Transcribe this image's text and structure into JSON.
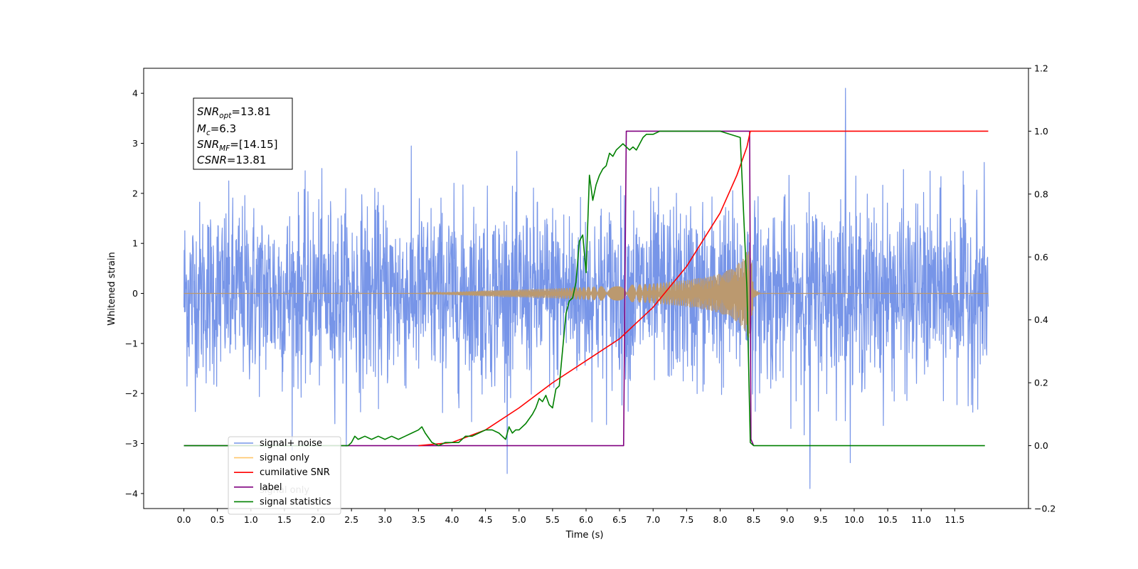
{
  "chart_data": {
    "type": "line",
    "xlabel": "Time (s)",
    "ylabel": "Whitened strain",
    "x_range": [
      -0.6,
      12.6
    ],
    "y_left_range": [
      -4.3,
      4.5
    ],
    "y_right_range": [
      -0.2,
      1.2
    ],
    "x_ticks": [
      "0.0",
      "0.5",
      "1.0",
      "1.5",
      "2.0",
      "2.5",
      "3.0",
      "3.5",
      "4.0",
      "4.5",
      "5.0",
      "5.5",
      "6.0",
      "6.5",
      "7.0",
      "7.5",
      "8.0",
      "8.5",
      "9.0",
      "9.5",
      "10.0",
      "10.5",
      "11.0",
      "11.5"
    ],
    "y_left_ticks": [
      "−4",
      "−3",
      "−2",
      "−1",
      "0",
      "1",
      "2",
      "3",
      "4"
    ],
    "y_right_ticks": [
      "−0.2",
      "0.0",
      "0.2",
      "0.4",
      "0.6",
      "0.8",
      "1.0",
      "1.2"
    ],
    "annotation": [
      {
        "main": "SNR",
        "sub": "opt",
        "value": "=13.81"
      },
      {
        "main": "M",
        "sub": "c",
        "value": "=6.3"
      },
      {
        "main": "SNR",
        "sub": "MF",
        "value": "=[14.15]"
      },
      {
        "main": "CSNR",
        "sub": "",
        "value": "=13.81"
      }
    ],
    "legend": {
      "placement": "lower-left",
      "entries": [
        {
          "label": "signal+ noise",
          "color": "#7795e8"
        },
        {
          "label": "signal only",
          "color": "#ffc66a"
        },
        {
          "label": "cumilative SNR",
          "color": "#ff0000"
        },
        {
          "label": "label",
          "color": "#800080"
        },
        {
          "label": "signal statistics",
          "color": "#008000"
        }
      ]
    },
    "legend_ghost_text": "signal only",
    "series": [
      {
        "name": "signal+ noise",
        "axis": "left",
        "color": "#7795e8",
        "noise_std": 0.9,
        "max": 4.1,
        "min": -3.9,
        "x_start": 0.0,
        "x_end": 12.0
      },
      {
        "name": "signal only",
        "axis": "left",
        "color": "#bb996f",
        "envelope": [
          [
            0,
            0
          ],
          [
            3.5,
            0
          ],
          [
            4.0,
            0.03
          ],
          [
            4.5,
            0.06
          ],
          [
            5.0,
            0.08
          ],
          [
            5.5,
            0.1
          ],
          [
            6.0,
            0.13
          ],
          [
            6.5,
            0.16
          ],
          [
            7.0,
            0.2
          ],
          [
            7.5,
            0.27
          ],
          [
            7.8,
            0.33
          ],
          [
            8.0,
            0.4
          ],
          [
            8.2,
            0.52
          ],
          [
            8.35,
            0.7
          ],
          [
            8.45,
            1.0
          ],
          [
            8.5,
            0.1
          ],
          [
            8.55,
            0.05
          ],
          [
            8.6,
            0
          ],
          [
            12.0,
            0
          ]
        ]
      },
      {
        "name": "cumilative SNR",
        "axis": "right",
        "color": "#ff0000",
        "x": [
          3.5,
          4.0,
          4.5,
          5.0,
          5.5,
          6.0,
          6.5,
          7.0,
          7.5,
          8.0,
          8.25,
          8.4,
          8.45,
          8.5,
          12.0
        ],
        "y": [
          0.0,
          0.01,
          0.05,
          0.12,
          0.2,
          0.27,
          0.34,
          0.44,
          0.57,
          0.74,
          0.86,
          0.95,
          1.0,
          1.0,
          1.0
        ]
      },
      {
        "name": "label",
        "axis": "right",
        "color": "#800080",
        "x": [
          0.0,
          6.56,
          6.6,
          8.44,
          8.46,
          8.5
        ],
        "y": [
          0.0,
          0.0,
          1.0,
          1.0,
          0.02,
          0.0
        ]
      },
      {
        "name": "signal statistics",
        "axis": "right",
        "color": "#008000",
        "x": [
          0.0,
          2.45,
          2.5,
          2.55,
          2.6,
          2.7,
          2.8,
          2.9,
          3.0,
          3.1,
          3.2,
          3.3,
          3.4,
          3.5,
          3.55,
          3.6,
          3.7,
          3.8,
          3.9,
          4.0,
          4.1,
          4.2,
          4.3,
          4.4,
          4.5,
          4.6,
          4.7,
          4.75,
          4.8,
          4.85,
          4.9,
          4.95,
          5.0,
          5.1,
          5.2,
          5.25,
          5.3,
          5.35,
          5.4,
          5.45,
          5.5,
          5.55,
          5.6,
          5.7,
          5.75,
          5.8,
          5.85,
          5.9,
          5.95,
          6.0,
          6.05,
          6.1,
          6.15,
          6.2,
          6.25,
          6.3,
          6.35,
          6.4,
          6.45,
          6.5,
          6.55,
          6.6,
          6.65,
          6.7,
          6.75,
          6.8,
          6.85,
          6.9,
          7.0,
          7.1,
          7.2,
          7.3,
          7.5,
          8.0,
          8.3,
          8.4,
          8.45,
          8.5,
          11.95
        ],
        "y": [
          0.0,
          0.0,
          0.01,
          0.03,
          0.02,
          0.03,
          0.02,
          0.03,
          0.02,
          0.03,
          0.02,
          0.03,
          0.04,
          0.05,
          0.06,
          0.04,
          0.01,
          0.0,
          0.01,
          0.01,
          0.01,
          0.03,
          0.03,
          0.04,
          0.05,
          0.05,
          0.04,
          0.03,
          0.02,
          0.06,
          0.04,
          0.05,
          0.05,
          0.07,
          0.1,
          0.12,
          0.15,
          0.14,
          0.16,
          0.13,
          0.12,
          0.18,
          0.19,
          0.42,
          0.46,
          0.47,
          0.52,
          0.65,
          0.67,
          0.55,
          0.86,
          0.78,
          0.83,
          0.86,
          0.88,
          0.89,
          0.93,
          0.92,
          0.94,
          0.95,
          0.96,
          0.95,
          0.94,
          0.95,
          0.94,
          0.96,
          0.98,
          0.99,
          0.99,
          1.0,
          1.0,
          1.0,
          1.0,
          1.0,
          0.98,
          0.5,
          0.01,
          0.0,
          0.0
        ]
      }
    ]
  }
}
